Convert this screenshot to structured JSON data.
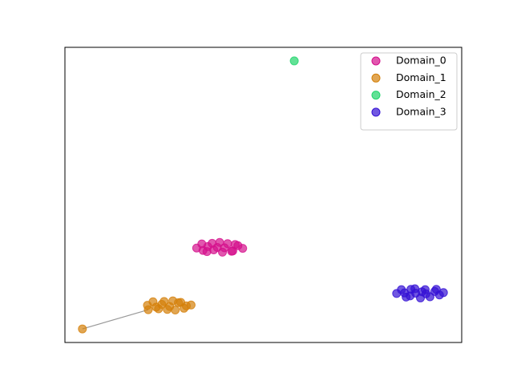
{
  "chart_data": {
    "type": "scatter",
    "xlim": [
      0,
      100
    ],
    "ylim": [
      0,
      100
    ],
    "legend": "upper right",
    "series": [
      {
        "name": "Domain_0",
        "color": "#d4108c",
        "x": [
          33.2,
          34.5,
          35.8,
          37.1,
          38.4,
          39.7,
          41.0,
          42.3,
          43.6,
          44.8,
          34.8,
          37.5,
          40.2,
          42.9,
          36.0,
          39.0,
          42.0
        ],
        "values": [
          32.0,
          33.4,
          30.8,
          33.6,
          32.2,
          30.6,
          33.5,
          31.0,
          32.8,
          31.9,
          31.2,
          31.4,
          32.1,
          33.2,
          32.5,
          33.9,
          30.9
        ]
      },
      {
        "name": "Domain_1",
        "color": "#d4800a",
        "x": [
          4.4,
          21.0,
          20.8,
          22.2,
          23.6,
          25.0,
          26.4,
          27.8,
          29.2,
          30.6,
          31.8,
          23.0,
          25.8,
          28.6,
          24.4,
          27.2,
          30.0
        ],
        "values": [
          4.6,
          11.1,
          12.6,
          13.8,
          11.4,
          13.9,
          12.2,
          11.0,
          13.6,
          12.4,
          12.7,
          12.0,
          11.2,
          13.5,
          12.9,
          14.1,
          11.6
        ]
      },
      {
        "name": "Domain_2",
        "color": "#1fd46a",
        "x": [
          57.8
        ],
        "values": [
          95.4
        ]
      },
      {
        "name": "Domain_3",
        "color": "#3411d4",
        "x": [
          83.6,
          84.8,
          86.0,
          87.2,
          88.4,
          89.6,
          90.8,
          92.0,
          93.2,
          94.4,
          95.4,
          85.6,
          88.2,
          91.0,
          93.6,
          87.0,
          90.0
        ],
        "values": [
          16.6,
          17.9,
          15.4,
          18.0,
          16.7,
          15.1,
          17.9,
          15.5,
          17.3,
          16.1,
          16.9,
          16.8,
          18.2,
          16.5,
          18.0,
          15.8,
          17.2
        ]
      }
    ]
  }
}
